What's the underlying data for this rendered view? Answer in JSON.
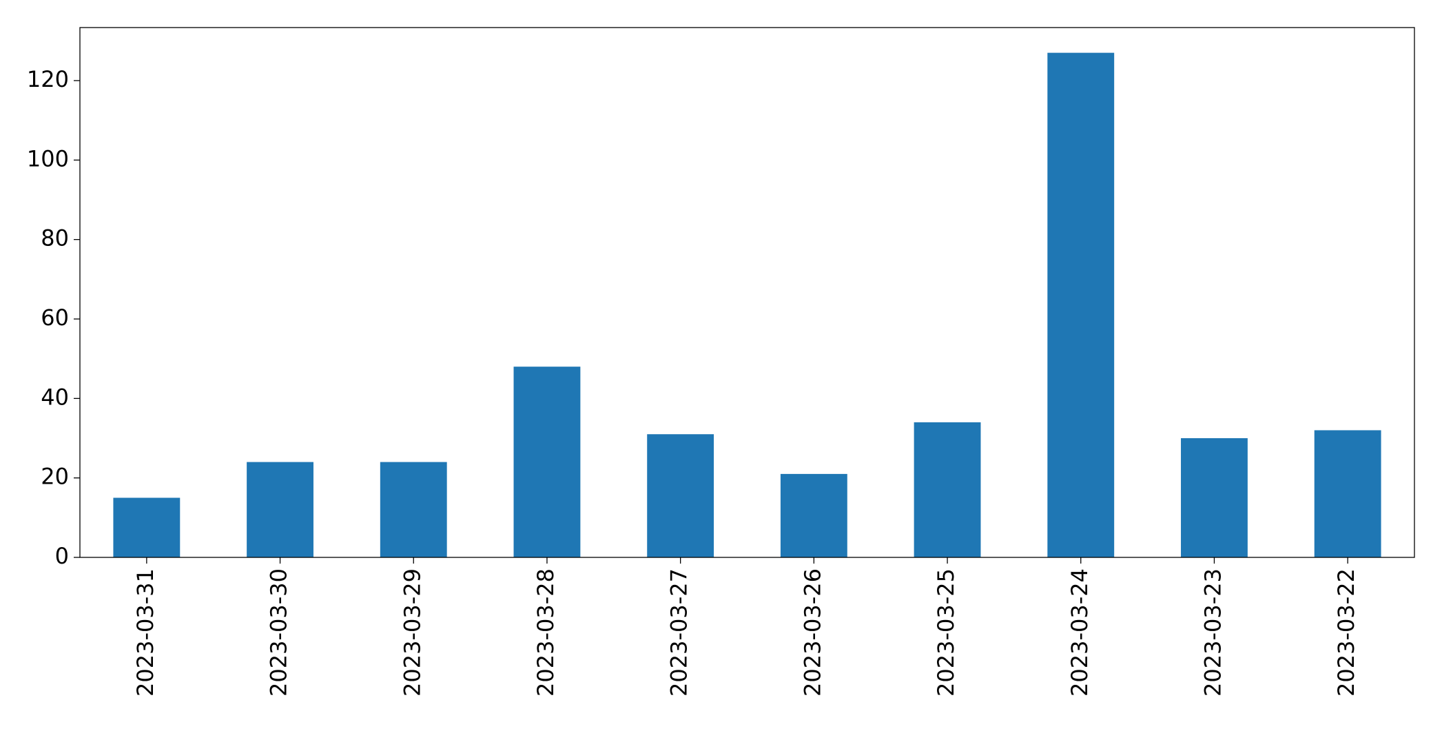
{
  "chart_data": {
    "type": "bar",
    "categories": [
      "2023-03-31",
      "2023-03-30",
      "2023-03-29",
      "2023-03-28",
      "2023-03-27",
      "2023-03-26",
      "2023-03-25",
      "2023-03-24",
      "2023-03-23",
      "2023-03-22"
    ],
    "values": [
      15,
      24,
      24,
      48,
      31,
      21,
      34,
      127,
      30,
      32
    ],
    "color": "#1f77b4",
    "ylim": [
      0,
      133.35
    ],
    "yticks": [
      0,
      20,
      40,
      60,
      80,
      100,
      120
    ],
    "grid": false
  }
}
